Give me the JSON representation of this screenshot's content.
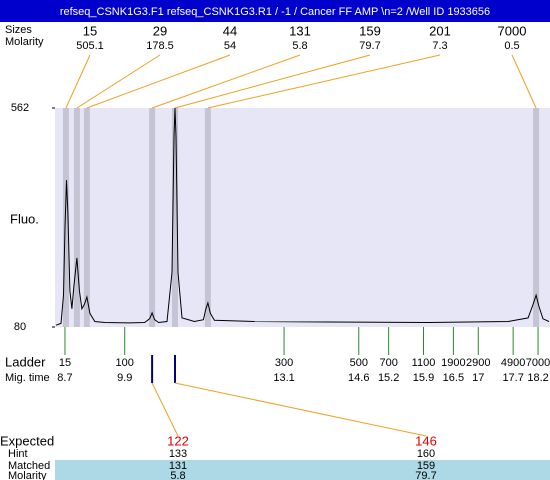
{
  "chart_data": {
    "type": "line",
    "title": "refseq_CSNK1G3.F1  refseq_CSNK1G3.R1 / -1 / Cancer FF AMP \\n=2 /Well ID 1933656",
    "y_label": "Fluo.",
    "ylim": [
      80,
      562
    ],
    "yticks": [
      562,
      80
    ],
    "xlim": [
      8.5,
      18.44
    ],
    "color": "#000000",
    "x": [
      8.52,
      8.62,
      8.67,
      8.7,
      8.73,
      8.76,
      8.8,
      8.84,
      8.88,
      8.94,
      8.99,
      9.04,
      9.09,
      9.14,
      9.2,
      9.3,
      9.5,
      10.0,
      10.3,
      10.4,
      10.45,
      10.5,
      10.58,
      10.75,
      10.85,
      10.89,
      10.91,
      10.93,
      10.97,
      11.05,
      11.3,
      11.48,
      11.53,
      11.57,
      11.62,
      11.7,
      12.5,
      14,
      16,
      17.6,
      18.0,
      18.1,
      18.16,
      18.22,
      18.3,
      18.42
    ],
    "values": [
      84,
      88,
      150,
      300,
      403,
      330,
      160,
      120,
      170,
      232,
      160,
      120,
      130,
      146,
      110,
      92,
      90,
      89,
      90,
      98,
      111,
      96,
      90,
      92,
      200,
      500,
      562,
      500,
      200,
      100,
      92,
      96,
      120,
      133,
      110,
      95,
      92,
      91,
      90,
      92,
      100,
      130,
      150,
      125,
      98,
      92
    ],
    "peaks": {
      "labels": [
        "Sizes",
        "Molarity"
      ],
      "sizes": [
        15,
        29,
        44,
        131,
        159,
        201,
        7000
      ],
      "molarity": [
        505.1,
        178.5,
        54,
        5.8,
        79.7,
        7.3,
        0.5
      ],
      "times": [
        8.72,
        8.94,
        9.14,
        10.45,
        10.91,
        11.57,
        18.16
      ]
    },
    "ladder": {
      "labels": [
        "Ladder",
        "Mig. time"
      ],
      "sizes": [
        15,
        100,
        300,
        500,
        700,
        1100,
        1900,
        2900,
        4900,
        7000
      ],
      "times": [
        8.7,
        9.9,
        13.1,
        14.6,
        15.2,
        15.9,
        16.5,
        17,
        17.7,
        18.2
      ]
    },
    "expected": {
      "labels": [
        "Expected",
        "Hint",
        "Matched",
        "Molarity"
      ],
      "columns": [
        {
          "expected": 122,
          "hint": 133,
          "matched": 131,
          "molarity": 5.8,
          "time": 10.45
        },
        {
          "expected": 146,
          "hint": 160,
          "matched": 159,
          "molarity": 79.7,
          "time": 10.91
        }
      ]
    }
  }
}
